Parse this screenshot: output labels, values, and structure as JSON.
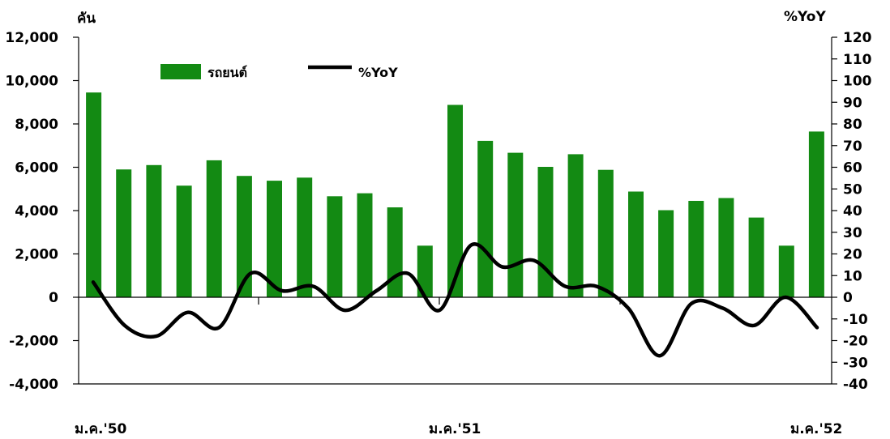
{
  "chart_data": {
    "type": "bar+line",
    "left_unit": "คัน",
    "right_unit": "%YoY",
    "left_axis": {
      "min": -4000,
      "max": 12000,
      "step": 2000,
      "tick_labels": [
        "-4,000",
        "-2,000",
        "0",
        "2,000",
        "4,000",
        "6,000",
        "8,000",
        "10,000",
        "12,000"
      ]
    },
    "right_axis": {
      "min": -40,
      "max": 120,
      "step": 10,
      "tick_labels": [
        "-40",
        "-30",
        "-20",
        "-10",
        "0",
        "10",
        "20",
        "30",
        "40",
        "50",
        "60",
        "70",
        "80",
        "90",
        "100",
        "110",
        "120"
      ]
    },
    "x_labels": [
      "ม.ค.'50",
      "ม.ค.'51",
      "ม.ค.'52"
    ],
    "series": [
      {
        "name": "รถยนต์",
        "kind": "bar",
        "color": "#138a13",
        "values": [
          9450,
          5900,
          6100,
          5150,
          6320,
          5600,
          5380,
          5520,
          4660,
          4800,
          4150,
          2380,
          8880,
          7220,
          6670,
          6020,
          6600,
          5880,
          4880,
          4020,
          4450,
          4580,
          3680,
          2380,
          7650
        ]
      },
      {
        "name": "%YoY",
        "kind": "line",
        "color": "#000000",
        "values": [
          7,
          -13,
          -18,
          -7,
          -14,
          11,
          3,
          5,
          -6,
          3,
          11,
          -6,
          24,
          14,
          17,
          5,
          5,
          -5,
          -27,
          -3,
          -5,
          -13,
          0,
          -14
        ]
      }
    ],
    "grid": false,
    "legend": "top-left"
  }
}
